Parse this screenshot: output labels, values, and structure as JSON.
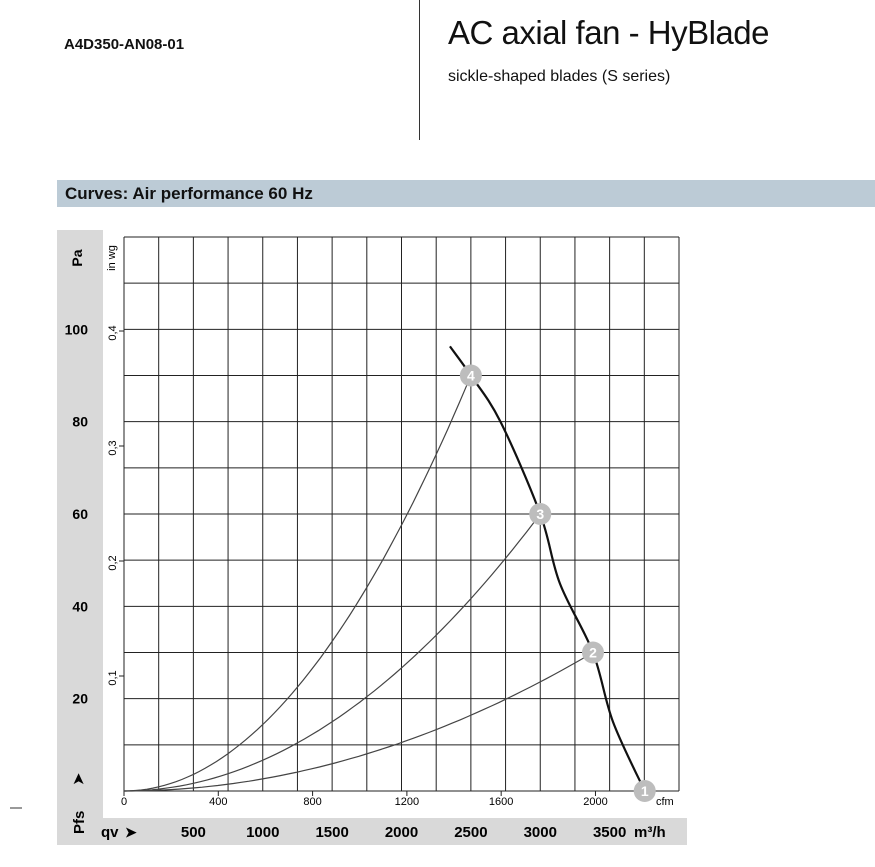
{
  "header": {
    "model": "A4D350-AN08-01",
    "title": "AC axial fan - HyBlade",
    "subtitle": "sickle-shaped blades (S series)"
  },
  "section": {
    "title": "Curves: Air performance 60 Hz"
  },
  "chart_data": {
    "type": "line",
    "xlabel": "qv",
    "xunit": "m³/h",
    "x2unit": "cfm",
    "ylabel": "Pfs",
    "yunit": "Pa",
    "y2unit": "in wg",
    "xlim": [
      0,
      4000
    ],
    "ylim": [
      0,
      120
    ],
    "grid": true,
    "x_ticks": [
      500,
      1000,
      1500,
      2000,
      2500,
      3000,
      3500
    ],
    "x2_ticks": [
      0,
      400,
      800,
      1200,
      1600,
      2000
    ],
    "y_ticks": [
      20,
      40,
      60,
      80,
      100
    ],
    "y2_ticks": [
      "0,1",
      "0,2",
      "0,3",
      "0,4"
    ],
    "fan_curve": [
      [
        2349,
        96.3
      ],
      [
        2500,
        90
      ],
      [
        2713,
        80
      ],
      [
        3000,
        60
      ],
      [
        3141,
        45
      ],
      [
        3380,
        30
      ],
      [
        3524,
        15
      ],
      [
        3753,
        0
      ]
    ],
    "operating_points": [
      {
        "label": "1",
        "x": 3753,
        "y": 0
      },
      {
        "label": "2",
        "x": 3380,
        "y": 30
      },
      {
        "label": "3",
        "x": 3000,
        "y": 60
      },
      {
        "label": "4",
        "x": 2500,
        "y": 90
      }
    ],
    "colors": {
      "fan_curve": "#111111",
      "system_curve": "#444444",
      "badge": "#bdbdbd",
      "panel": "#d9d9d9",
      "section": "#bccbd6"
    }
  }
}
